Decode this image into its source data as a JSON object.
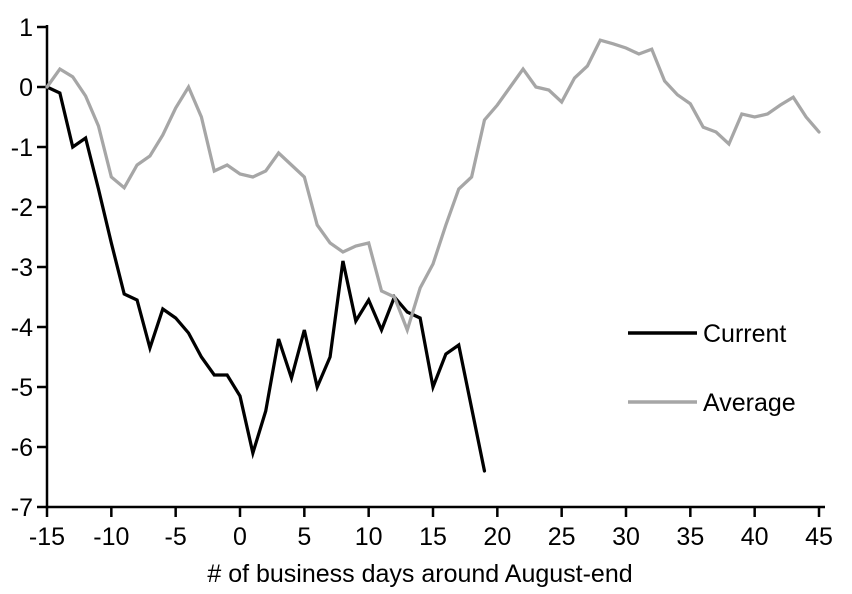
{
  "chart_data": {
    "type": "line",
    "title": "",
    "xlabel": "# of business days around August-end",
    "ylabel": "",
    "grid": false,
    "legend_position": "middle-right",
    "x_axis": {
      "min": -15,
      "max": 45,
      "tick_step": 5,
      "ticks": [
        -15,
        -10,
        -5,
        0,
        5,
        10,
        15,
        20,
        25,
        30,
        35,
        40,
        45
      ]
    },
    "y_axis": {
      "min": -7,
      "max": 1,
      "tick_step": 1,
      "ticks": [
        1,
        0,
        -1,
        -2,
        -3,
        -4,
        -5,
        -6,
        -7
      ]
    },
    "series": [
      {
        "name": "Current",
        "color": "#000000",
        "x_start": -15,
        "x_step": 1,
        "values": [
          0,
          -0.1,
          -1,
          -0.85,
          -1.7,
          -2.6,
          -3.45,
          -3.55,
          -4.35,
          -3.7,
          -3.85,
          -4.1,
          -4.5,
          -4.8,
          -4.8,
          -5.15,
          -6.1,
          -5.4,
          -4.2,
          -4.85,
          -4.05,
          -5,
          -4.5,
          -2.9,
          -3.9,
          -3.55,
          -4.05,
          -3.5,
          -3.75,
          -3.85,
          -5,
          -4.45,
          -4.3,
          -5.35,
          -6.4
        ]
      },
      {
        "name": "Average",
        "color": "#a6a6a6",
        "x_start": -15,
        "x_step": 1,
        "values": [
          0,
          0.3,
          0.17,
          -0.15,
          -0.65,
          -1.5,
          -1.68,
          -1.3,
          -1.15,
          -0.8,
          -0.35,
          0,
          -0.5,
          -1.4,
          -1.3,
          -1.45,
          -1.5,
          -1.4,
          -1.1,
          -1.3,
          -1.5,
          -2.3,
          -2.6,
          -2.75,
          -2.65,
          -2.6,
          -3.4,
          -3.5,
          -4.05,
          -3.35,
          -2.95,
          -2.3,
          -1.7,
          -1.5,
          -0.55,
          -0.3,
          0,
          0.3,
          0,
          -0.05,
          -0.25,
          0.15,
          0.35,
          0.78,
          0.72,
          0.65,
          0.55,
          0.63,
          0.1,
          -0.13,
          -0.28,
          -0.67,
          -0.75,
          -0.95,
          -0.45,
          -0.5,
          -0.45,
          -0.3,
          -0.17,
          -0.5,
          -0.75
        ]
      }
    ]
  }
}
